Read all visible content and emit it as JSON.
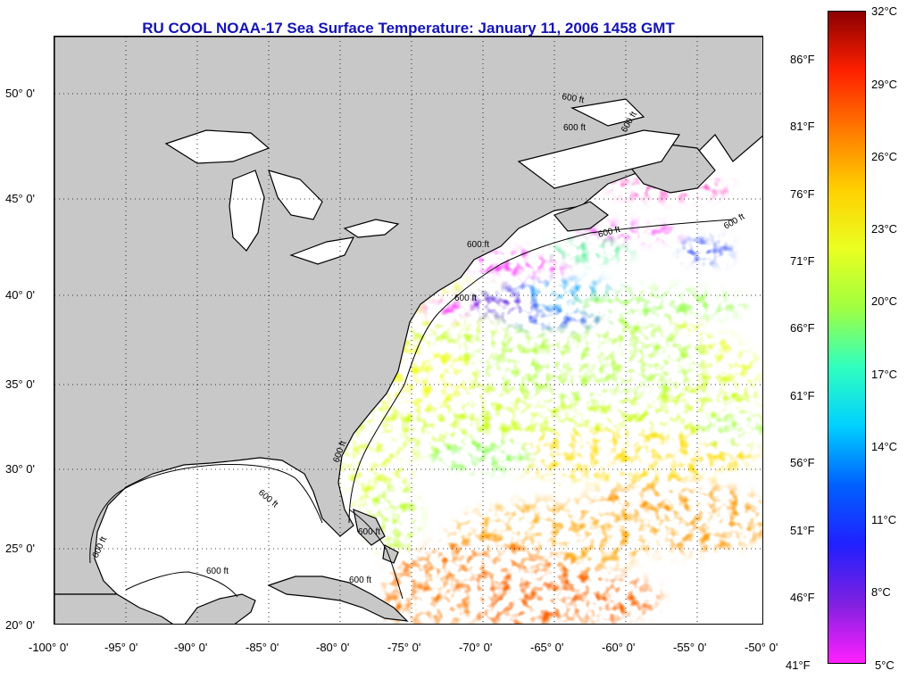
{
  "title": "RU COOL  NOAA-17  Sea Surface Temperature:  January 11, 2006 1458 GMT",
  "map": {
    "lon_ticks": [
      "-100° 0'",
      "-95° 0'",
      "-90° 0'",
      "-85° 0'",
      "-80° 0'",
      "-75° 0'",
      "-70° 0'",
      "-65° 0'",
      "-60° 0'",
      "-55° 0'",
      "-50° 0'"
    ],
    "lat_ticks": [
      "50° 0'",
      "45° 0'",
      "40° 0'",
      "35° 0'",
      "30° 0'",
      "25° 0'",
      "20° 0'"
    ],
    "contour_labels": [
      "600 ft",
      "600 ft",
      "600 ft",
      "600 ft",
      "600 ft",
      "600 ft",
      "600 ft",
      "600 ft",
      "600 ft",
      "600 ft",
      "600 ft",
      "600 ft",
      "600 ft"
    ],
    "colors": {
      "land": "#c8c8c8",
      "ocean": "#ffffff",
      "coast": "#000000",
      "grid": "#000000"
    }
  },
  "colorbar": {
    "celsius_labels": [
      "32°C",
      "29°C",
      "26°C",
      "23°C",
      "20°C",
      "17°C",
      "14°C",
      "11°C",
      "8°C",
      "5°C"
    ],
    "fahrenheit_labels": [
      "86°F",
      "81°F",
      "76°F",
      "71°F",
      "66°F",
      "61°F",
      "56°F",
      "51°F",
      "46°F",
      "41°F"
    ],
    "stops": [
      "#8b0000",
      "#ff2000",
      "#ff7a00",
      "#ffd000",
      "#eaff20",
      "#a0ff40",
      "#30ffc0",
      "#00d0ff",
      "#0060ff",
      "#2020ff",
      "#8020e0",
      "#ff20ff"
    ]
  }
}
